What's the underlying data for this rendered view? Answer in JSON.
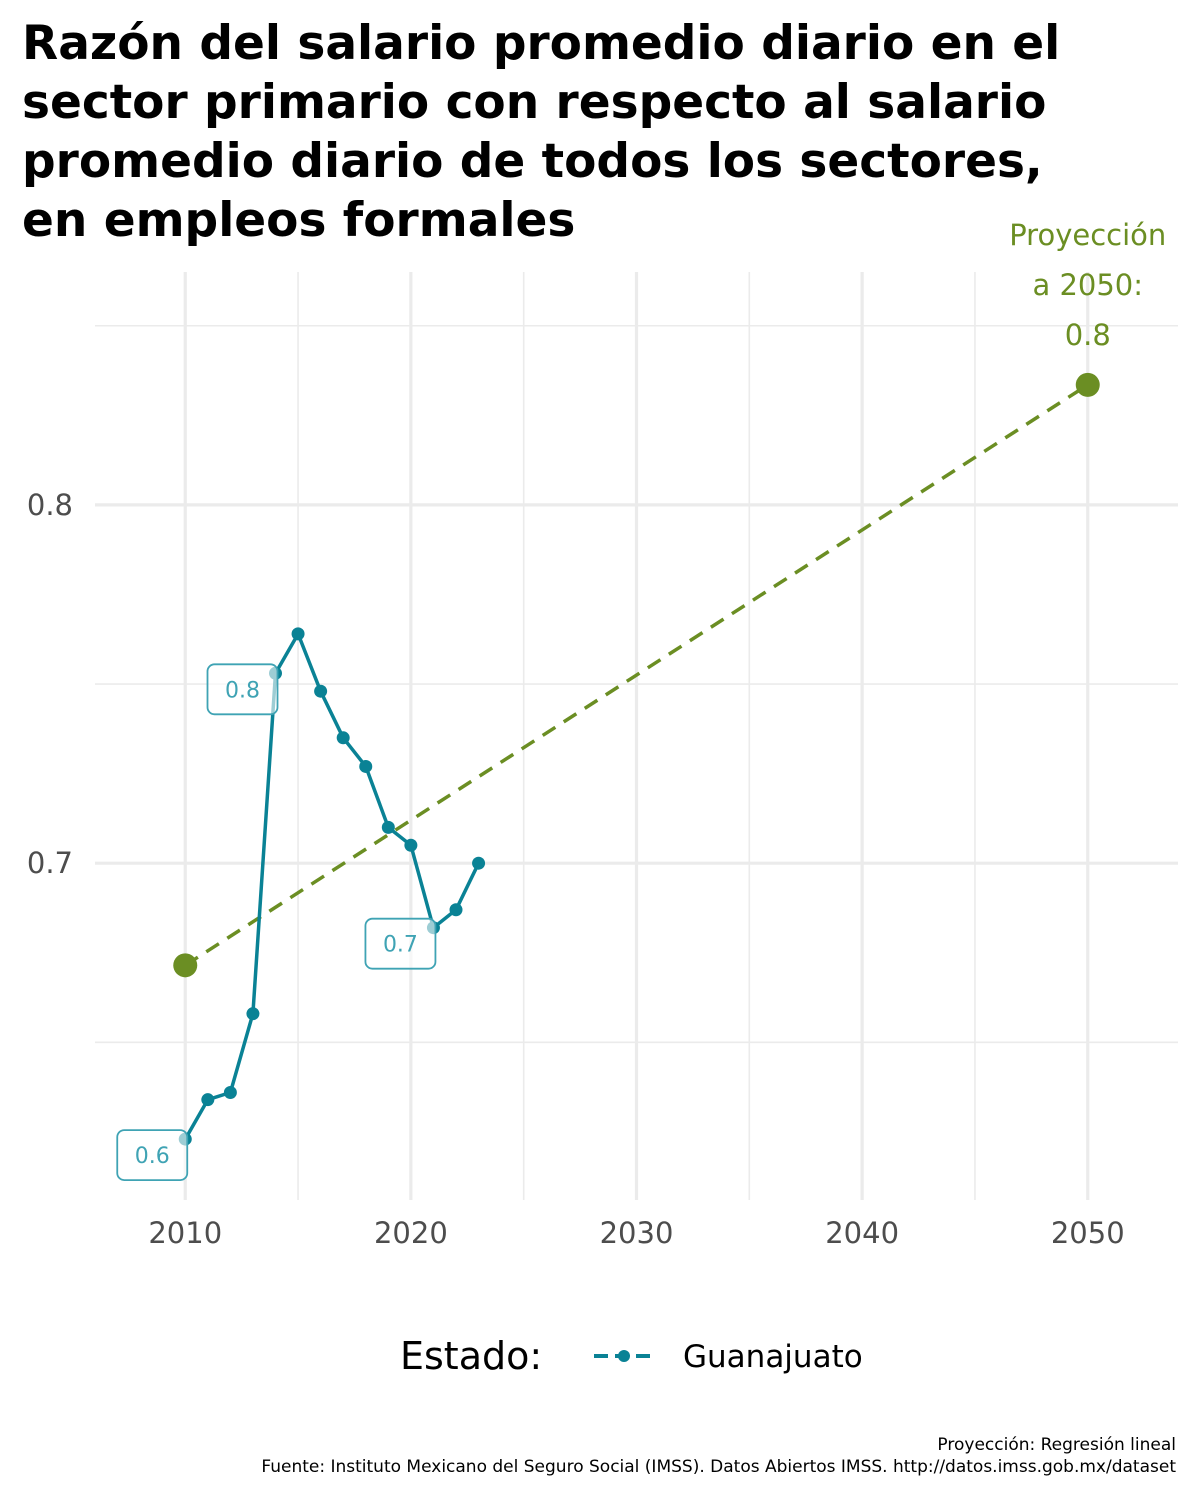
{
  "chart_data": {
    "type": "line",
    "title": "Razón del salario promedio diario en el sector primario con respecto al salario promedio diario de todos los sectores, en empleos formales",
    "title_lines": [
      "Razón del salario promedio diario en el",
      "sector primario con respecto al salario",
      "promedio diario de todos los sectores,",
      "en empleos formales"
    ],
    "x_ticks": [
      2010,
      2020,
      2030,
      2040,
      2050
    ],
    "y_ticks": [
      0.7,
      0.8
    ],
    "xlim": [
      2006,
      2054
    ],
    "ylim": [
      0.606,
      0.865
    ],
    "grid": true,
    "series": [
      {
        "name": "Guanajuato",
        "color": "#0a8295",
        "x": [
          2010,
          2011,
          2012,
          2013,
          2014,
          2015,
          2016,
          2017,
          2018,
          2019,
          2020,
          2021,
          2022,
          2023
        ],
        "y": [
          0.623,
          0.634,
          0.636,
          0.658,
          0.753,
          0.764,
          0.748,
          0.735,
          0.727,
          0.71,
          0.705,
          0.682,
          0.687,
          0.7
        ]
      }
    ],
    "point_labels": [
      {
        "x": 2010,
        "y": 0.623,
        "text": "0.6"
      },
      {
        "x": 2014,
        "y": 0.753,
        "text": "0.8"
      },
      {
        "x": 2021,
        "y": 0.682,
        "text": "0.7"
      }
    ],
    "projection": {
      "color": "#6b8e23",
      "x": [
        2010,
        2050
      ],
      "y": [
        0.6715,
        0.8335
      ],
      "annotation": [
        "Proyección",
        "a 2050:",
        "0.8"
      ]
    },
    "legend": {
      "title": "Estado:",
      "label": "Guanajuato",
      "position": "bottom"
    }
  },
  "caption": {
    "line1": "Proyección: Regresión lineal",
    "line2": "Fuente: Instituto Mexicano del Seguro Social (IMSS). Datos Abiertos IMSS. http://datos.imss.gob.mx/dataset"
  }
}
